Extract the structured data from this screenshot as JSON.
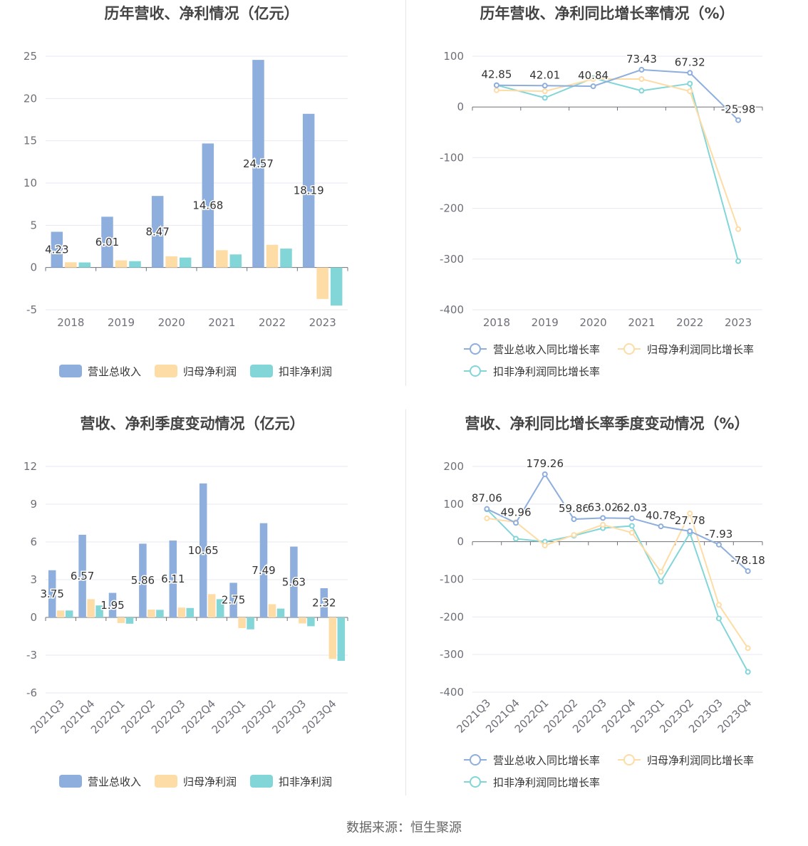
{
  "source": "数据来源：恒生聚源",
  "colors": {
    "revenue": "#8eaedd",
    "netprofit": "#fedca6",
    "deducted": "#82d6d8"
  },
  "charts": [
    {
      "id": "annual-bars",
      "chart_data": {
        "type": "bar",
        "title": "历年营收、净利情况（亿元）",
        "categories": [
          "2018",
          "2019",
          "2020",
          "2021",
          "2022",
          "2023"
        ],
        "series": [
          {
            "name": "营业总收入",
            "values": [
              4.23,
              6.01,
              8.47,
              14.68,
              24.57,
              18.19
            ]
          },
          {
            "name": "归母净利润",
            "values": [
              0.62,
              0.85,
              1.33,
              2.05,
              2.69,
              -3.72
            ]
          },
          {
            "name": "扣非净利润",
            "values": [
              0.6,
              0.75,
              1.18,
              1.55,
              2.24,
              -4.5
            ]
          }
        ],
        "data_labels_series": 0,
        "ylim": [
          -5,
          25
        ],
        "yticks": [
          -5,
          0,
          5,
          10,
          15,
          20,
          25
        ],
        "xlabel": "",
        "ylabel": ""
      }
    },
    {
      "id": "annual-growth",
      "chart_data": {
        "type": "line",
        "title": "历年营收、净利同比增长率情况（%）",
        "categories": [
          "2018",
          "2019",
          "2020",
          "2021",
          "2022",
          "2023"
        ],
        "series": [
          {
            "name": "营业总收入同比增长率",
            "values": [
              42.85,
              42.01,
              40.84,
              73.43,
              67.32,
              -25.98
            ]
          },
          {
            "name": "归母净利润同比增长率",
            "values": [
              33,
              31,
              55,
              55,
              31,
              -241
            ]
          },
          {
            "name": "扣非净利润同比增长率",
            "values": [
              43,
              18,
              57,
              32,
              46,
              -304
            ]
          }
        ],
        "data_labels_series": 0,
        "ylim": [
          -400,
          100
        ],
        "yticks": [
          -400,
          -300,
          -200,
          -100,
          0,
          100
        ],
        "xlabel": "",
        "ylabel": ""
      }
    },
    {
      "id": "quarter-bars",
      "chart_data": {
        "type": "bar",
        "title": "营收、净利季度变动情况（亿元）",
        "categories": [
          "2021Q3",
          "2021Q4",
          "2022Q1",
          "2022Q2",
          "2022Q3",
          "2022Q4",
          "2023Q1",
          "2023Q2",
          "2023Q3",
          "2023Q4"
        ],
        "series": [
          {
            "name": "营业总收入",
            "values": [
              3.75,
              6.57,
              1.95,
              5.86,
              6.11,
              10.65,
              2.75,
              7.49,
              5.63,
              2.32
            ]
          },
          {
            "name": "归母净利润",
            "values": [
              0.55,
              1.45,
              -0.45,
              0.62,
              0.78,
              1.85,
              -0.85,
              1.05,
              -0.48,
              -3.3
            ]
          },
          {
            "name": "扣非净利润",
            "values": [
              0.55,
              0.95,
              -0.5,
              0.6,
              0.75,
              1.45,
              -0.95,
              0.7,
              -0.7,
              -3.45
            ]
          }
        ],
        "data_labels_series": 0,
        "ylim": [
          -6,
          12
        ],
        "yticks": [
          -6,
          -3,
          0,
          3,
          6,
          9,
          12
        ],
        "xlabel": "",
        "ylabel": ""
      }
    },
    {
      "id": "quarter-growth",
      "chart_data": {
        "type": "line",
        "title": "营收、净利同比增长率季度变动情况（%）",
        "categories": [
          "2021Q3",
          "2021Q4",
          "2022Q1",
          "2022Q2",
          "2022Q3",
          "2022Q4",
          "2023Q1",
          "2023Q2",
          "2023Q3",
          "2023Q4"
        ],
        "series": [
          {
            "name": "营业总收入同比增长率",
            "values": [
              87.06,
              49.96,
              179.26,
              59.86,
              63.02,
              62.03,
              40.78,
              27.78,
              -7.93,
              -78.18
            ]
          },
          {
            "name": "归母净利润同比增长率",
            "values": [
              62,
              52,
              -10,
              18,
              45,
              24,
              -80,
              75,
              -168,
              -283
            ]
          },
          {
            "name": "扣非净利润同比增长率",
            "values": [
              86,
              8,
              0,
              16,
              36,
              42,
              -106,
              23,
              -204,
              -346
            ]
          }
        ],
        "data_labels_series": 0,
        "ylim": [
          -400,
          200
        ],
        "yticks": [
          -400,
          -300,
          -200,
          -100,
          0,
          100,
          200
        ],
        "xlabel": "",
        "ylabel": ""
      }
    }
  ]
}
